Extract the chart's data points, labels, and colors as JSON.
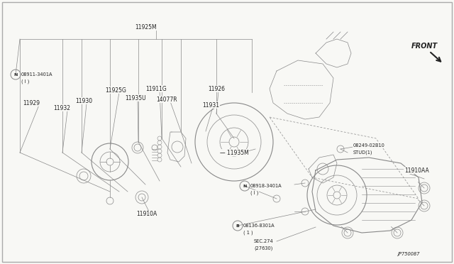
{
  "bg_color": "#f8f8f5",
  "line_color": "#888888",
  "text_color": "#222222",
  "fig_w": 6.4,
  "fig_h": 3.72,
  "dpi": 100,
  "xlim": [
    0,
    640
  ],
  "ylim": [
    0,
    372
  ]
}
